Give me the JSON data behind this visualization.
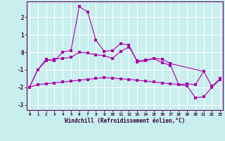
{
  "xlabel": "Windchill (Refroidissement éolien,°C)",
  "x": [
    0,
    1,
    2,
    3,
    4,
    5,
    6,
    7,
    8,
    9,
    10,
    11,
    12,
    13,
    14,
    15,
    16,
    17,
    18,
    19,
    20,
    21,
    22,
    23
  ],
  "line1": [
    -2.0,
    -1.0,
    -0.4,
    -0.5,
    0.0,
    0.1,
    2.6,
    2.3,
    0.7,
    0.05,
    0.1,
    0.5,
    0.4,
    -0.55,
    -0.5,
    -0.35,
    -0.4,
    -0.65,
    null,
    null,
    null,
    -1.1,
    null,
    null
  ],
  "line2": [
    -2.0,
    -1.0,
    -0.5,
    -0.4,
    -0.35,
    -0.3,
    0.0,
    -0.05,
    -0.15,
    -0.2,
    -0.35,
    0.05,
    0.3,
    -0.5,
    -0.45,
    -0.35,
    -0.6,
    -0.75,
    -1.85,
    -1.8,
    -1.85,
    -1.1,
    -1.95,
    -1.5
  ],
  "line3": [
    -2.0,
    -1.85,
    -1.8,
    -1.75,
    -1.7,
    -1.65,
    -1.6,
    -1.55,
    -1.5,
    -1.45,
    -1.48,
    -1.52,
    -1.55,
    -1.6,
    -1.65,
    -1.7,
    -1.75,
    -1.8,
    -1.85,
    -1.92,
    -2.6,
    -2.55,
    -2.0,
    -1.55
  ],
  "color": "#aa00aa",
  "bg_color": "#c8eeee",
  "grid_color": "#ffffff",
  "ylim": [
    -3.3,
    2.9
  ],
  "yticks": [
    -3,
    -2,
    -1,
    0,
    1,
    2
  ],
  "xticks": [
    0,
    1,
    2,
    3,
    4,
    5,
    6,
    7,
    8,
    9,
    10,
    11,
    12,
    13,
    14,
    15,
    16,
    17,
    18,
    19,
    20,
    21,
    22,
    23
  ],
  "linewidth": 0.8,
  "markersize": 2.2
}
